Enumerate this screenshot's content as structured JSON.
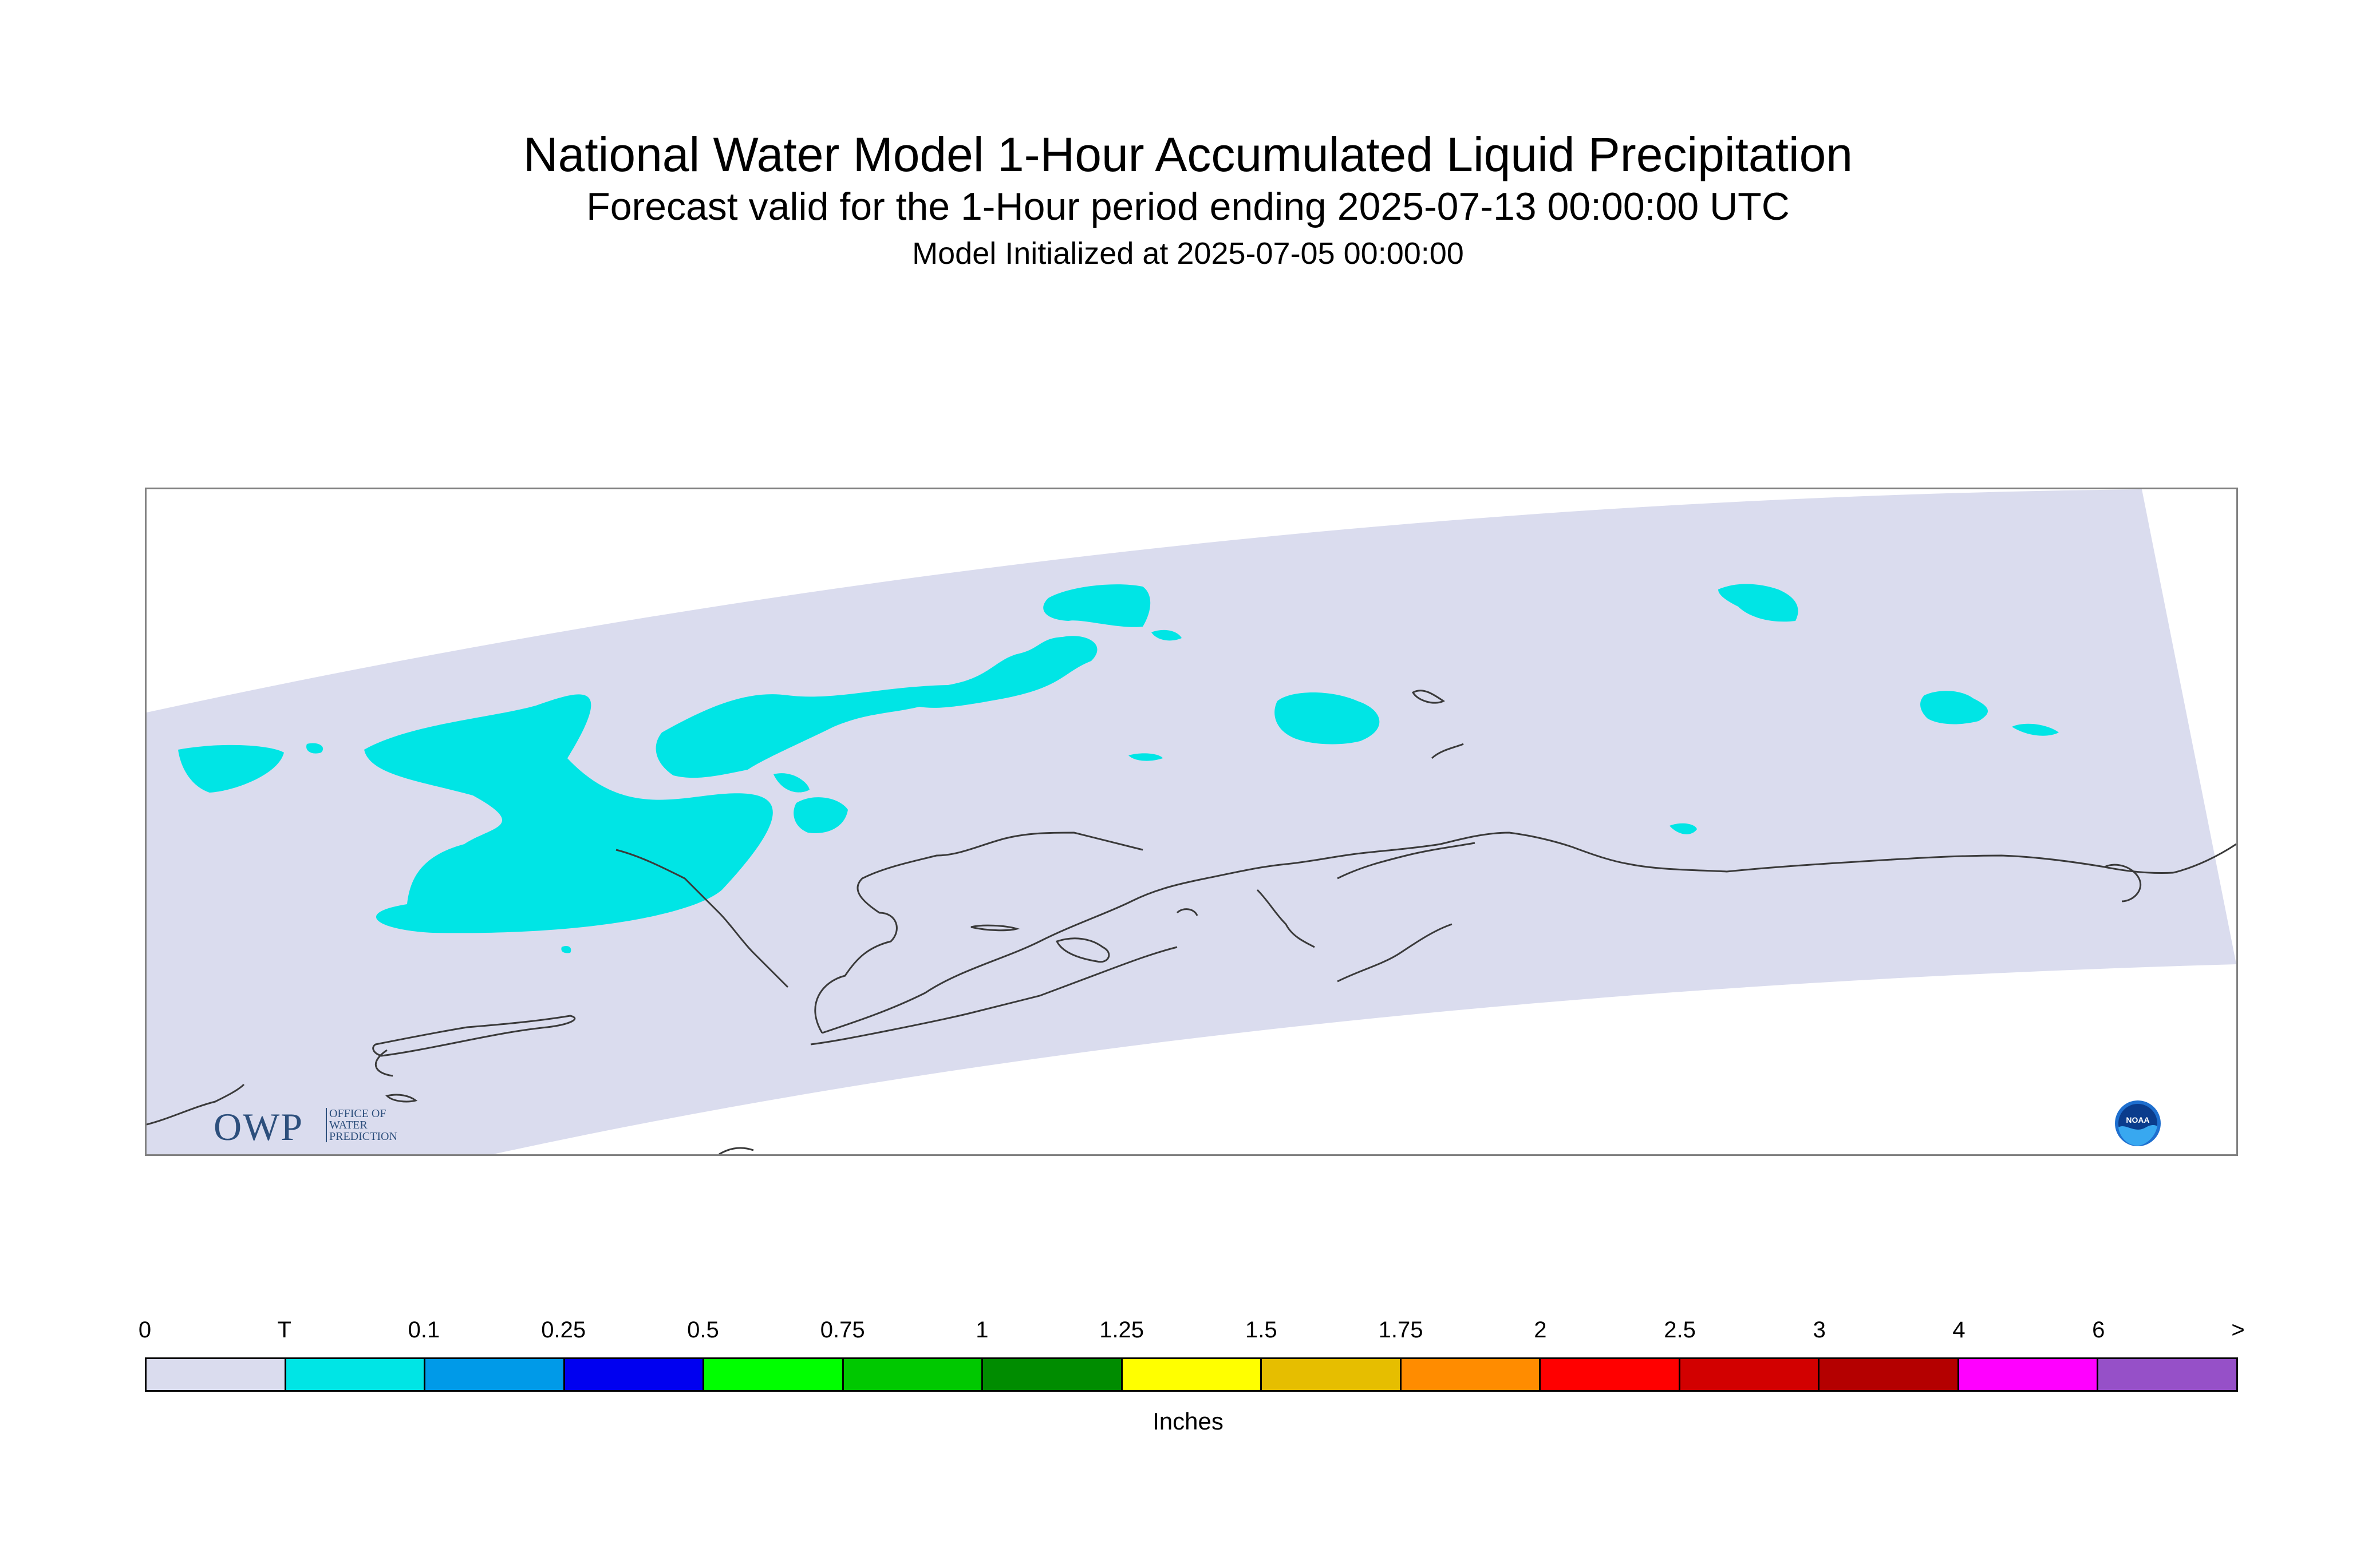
{
  "title": "National Water Model 1-Hour Accumulated Liquid Precipitation",
  "subtitle": "Forecast valid for the 1-Hour period ending 2025-07-13 00:00:00 UTC",
  "init_text": "Model Initialized at 2025-07-05 00:00:00",
  "map": {
    "domain_color": "#dadcee",
    "precip_color": "#00e5e5",
    "coast_color": "#3a3a3a"
  },
  "logos": {
    "owp_big": "OWP",
    "owp_line1": "OFFICE OF",
    "owp_line2": "WATER",
    "owp_line3": "PREDICTION",
    "noaa": "NOAA"
  },
  "colorbar": {
    "unit": "Inches",
    "ticks": [
      "0",
      "T",
      "0.1",
      "0.25",
      "0.5",
      "0.75",
      "1",
      "1.25",
      "1.5",
      "1.75",
      "2",
      "2.5",
      "3",
      "4",
      "6",
      ">"
    ],
    "colors": [
      "#dadcee",
      "#00e5e5",
      "#009ae8",
      "#0000f0",
      "#00ff00",
      "#00c800",
      "#008c00",
      "#ffff00",
      "#e6be00",
      "#ff8c00",
      "#ff0000",
      "#d20000",
      "#b40000",
      "#ff00ff",
      "#9650c8"
    ]
  }
}
